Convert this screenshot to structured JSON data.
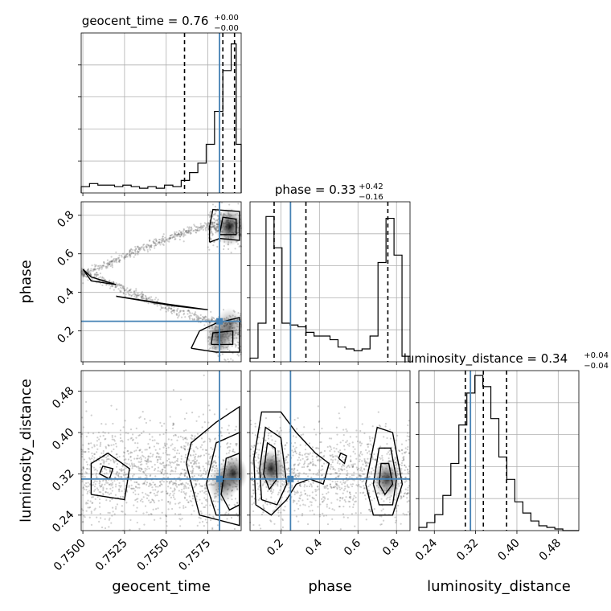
{
  "chart_data": {
    "type": "corner",
    "parameters": [
      "geocent_time",
      "phase",
      "luminosity_distance"
    ],
    "truth_color": "#4682b4",
    "truths": {
      "geocent_time": 0.7582,
      "phase": 0.25,
      "luminosity_distance": 0.31
    },
    "diagonal": [
      {
        "param": "geocent_time",
        "title_main": "geocent_time = 0.76",
        "title_sup": "+0.00",
        "title_sub": "−0.00",
        "xlim": [
          0.7499,
          0.7595
        ],
        "quantiles": [
          0.7561,
          0.7584,
          0.7591
        ],
        "bin_edges": [
          0.7499,
          0.7504,
          0.7509,
          0.7514,
          0.7519,
          0.7524,
          0.7529,
          0.7534,
          0.7539,
          0.7544,
          0.7549,
          0.7554,
          0.7559,
          0.7564,
          0.7569,
          0.7574,
          0.7579,
          0.7584,
          0.7589,
          0.7592,
          0.7595
        ],
        "counts": [
          0.04,
          0.06,
          0.05,
          0.05,
          0.04,
          0.05,
          0.04,
          0.03,
          0.04,
          0.03,
          0.05,
          0.04,
          0.08,
          0.13,
          0.19,
          0.31,
          0.52,
          0.78,
          0.95,
          0.31
        ],
        "ymax": 1.02
      },
      {
        "param": "phase",
        "title_main": "phase = 0.33",
        "title_sup": "+0.42",
        "title_sub": "−0.16",
        "xlim": [
          0.04,
          0.87
        ],
        "quantiles": [
          0.165,
          0.33,
          0.755
        ],
        "bin_edges": [
          0.04,
          0.0815,
          0.123,
          0.1645,
          0.206,
          0.2475,
          0.289,
          0.3305,
          0.372,
          0.4135,
          0.455,
          0.4965,
          0.538,
          0.5795,
          0.621,
          0.6625,
          0.704,
          0.7455,
          0.787,
          0.8285,
          0.87
        ],
        "counts": [
          0.02,
          0.21,
          0.79,
          0.62,
          0.21,
          0.2,
          0.19,
          0.16,
          0.14,
          0.14,
          0.12,
          0.08,
          0.07,
          0.06,
          0.07,
          0.14,
          0.54,
          0.78,
          0.58,
          0.03
        ],
        "ymax": 0.87
      },
      {
        "param": "luminosity_distance",
        "title_main": "luminosity_distance = 0.34",
        "title_sup": "+0.04",
        "title_sub": "−0.04",
        "xlim": [
          0.21,
          0.52
        ],
        "quantiles": [
          0.3,
          0.335,
          0.38
        ],
        "bin_edges": [
          0.21,
          0.2255,
          0.241,
          0.2565,
          0.272,
          0.2875,
          0.303,
          0.3185,
          0.334,
          0.3495,
          0.365,
          0.3805,
          0.396,
          0.4115,
          0.427,
          0.4425,
          0.458,
          0.4735,
          0.489,
          0.5045,
          0.52
        ],
        "counts": [
          0.02,
          0.05,
          0.1,
          0.22,
          0.42,
          0.66,
          0.86,
          0.97,
          0.9,
          0.7,
          0.46,
          0.32,
          0.18,
          0.11,
          0.06,
          0.03,
          0.02,
          0.01,
          0.0,
          0.0
        ],
        "ymax": 1.0
      }
    ],
    "offdiagonal": [
      {
        "x": "geocent_time",
        "y": "phase",
        "xlim": [
          0.7499,
          0.7595
        ],
        "ylim": [
          0.04,
          0.87
        ],
        "yticks": [
          "0.2",
          "0.4",
          "0.6",
          "0.8"
        ],
        "ytick_values": [
          0.2,
          0.4,
          0.6,
          0.8
        ],
        "density_blobs": [
          {
            "cx": 0.7588,
            "cy": 0.74,
            "level": 1.0
          },
          {
            "cx": 0.7582,
            "cy": 0.17,
            "level": 0.8
          },
          {
            "cx": 0.7588,
            "cy": 0.22,
            "level": 0.6
          }
        ],
        "contours": [
          [
            [
              0.7576,
              0.66
            ],
            [
              0.7582,
              0.68
            ],
            [
              0.7594,
              0.67
            ],
            [
              0.7594,
              0.82
            ],
            [
              0.7578,
              0.83
            ],
            [
              0.7576,
              0.74
            ],
            [
              0.7576,
              0.66
            ]
          ],
          [
            [
              0.7582,
              0.7
            ],
            [
              0.7592,
              0.7
            ],
            [
              0.7592,
              0.78
            ],
            [
              0.7584,
              0.79
            ],
            [
              0.7582,
              0.7
            ]
          ],
          [
            [
              0.75,
              0.52
            ],
            [
              0.7505,
              0.48
            ],
            [
              0.752,
              0.44
            ],
            [
              0.7505,
              0.46
            ],
            [
              0.75,
              0.52
            ]
          ],
          [
            [
              0.752,
              0.38
            ],
            [
              0.755,
              0.34
            ],
            [
              0.7575,
              0.31
            ],
            [
              0.7555,
              0.33
            ],
            [
              0.752,
              0.38
            ]
          ],
          [
            [
              0.7565,
              0.11
            ],
            [
              0.758,
              0.09
            ],
            [
              0.7594,
              0.09
            ],
            [
              0.7594,
              0.27
            ],
            [
              0.758,
              0.24
            ],
            [
              0.757,
              0.2
            ],
            [
              0.7565,
              0.11
            ]
          ],
          [
            [
              0.7577,
              0.13
            ],
            [
              0.759,
              0.13
            ],
            [
              0.759,
              0.2
            ],
            [
              0.7578,
              0.19
            ],
            [
              0.7577,
              0.13
            ]
          ]
        ]
      },
      {
        "x": "geocent_time",
        "y": "luminosity_distance",
        "xlim": [
          0.7499,
          0.7595
        ],
        "ylim": [
          0.21,
          0.52
        ],
        "xticks": [
          "0.7500",
          "0.7525",
          "0.7550",
          "0.7575"
        ],
        "xtick_values": [
          0.75,
          0.7525,
          0.755,
          0.7575
        ],
        "yticks": [
          "0.24",
          "0.32",
          "0.40",
          "0.48"
        ],
        "ytick_values": [
          0.24,
          0.32,
          0.4,
          0.48
        ],
        "density_blobs": [
          {
            "cx": 0.759,
            "cy": 0.32,
            "level": 1.0
          },
          {
            "cx": 0.7584,
            "cy": 0.3,
            "level": 0.7
          }
        ],
        "contours": [
          [
            [
              0.7505,
              0.28
            ],
            [
              0.7525,
              0.27
            ],
            [
              0.7528,
              0.33
            ],
            [
              0.7515,
              0.36
            ],
            [
              0.7505,
              0.34
            ],
            [
              0.7505,
              0.28
            ]
          ],
          [
            [
              0.751,
              0.32
            ],
            [
              0.7516,
              0.31
            ],
            [
              0.7518,
              0.33
            ],
            [
              0.7512,
              0.335
            ],
            [
              0.751,
              0.32
            ]
          ],
          [
            [
              0.7562,
              0.34
            ],
            [
              0.757,
              0.24
            ],
            [
              0.7594,
              0.22
            ],
            [
              0.7594,
              0.45
            ],
            [
              0.758,
              0.42
            ],
            [
              0.7565,
              0.38
            ],
            [
              0.7562,
              0.34
            ]
          ],
          [
            [
              0.7574,
              0.3
            ],
            [
              0.758,
              0.24
            ],
            [
              0.7594,
              0.24
            ],
            [
              0.7594,
              0.4
            ],
            [
              0.758,
              0.38
            ],
            [
              0.7574,
              0.3
            ]
          ],
          [
            [
              0.7583,
              0.28
            ],
            [
              0.7588,
              0.25
            ],
            [
              0.7594,
              0.26
            ],
            [
              0.7594,
              0.36
            ],
            [
              0.7586,
              0.35
            ],
            [
              0.7583,
              0.28
            ]
          ]
        ]
      },
      {
        "x": "phase",
        "y": "luminosity_distance",
        "xlim": [
          0.04,
          0.87
        ],
        "ylim": [
          0.21,
          0.52
        ],
        "xticks": [
          "0.2",
          "0.4",
          "0.6",
          "0.8"
        ],
        "xtick_values": [
          0.2,
          0.4,
          0.6,
          0.8
        ],
        "density_blobs": [
          {
            "cx": 0.15,
            "cy": 0.33,
            "level": 1.0
          },
          {
            "cx": 0.75,
            "cy": 0.31,
            "level": 0.9
          }
        ],
        "contours": [
          [
            [
              0.06,
              0.35
            ],
            [
              0.07,
              0.26
            ],
            [
              0.15,
              0.24
            ],
            [
              0.23,
              0.27
            ],
            [
              0.28,
              0.3
            ],
            [
              0.35,
              0.31
            ],
            [
              0.42,
              0.3
            ],
            [
              0.45,
              0.34
            ],
            [
              0.38,
              0.36
            ],
            [
              0.28,
              0.4
            ],
            [
              0.2,
              0.44
            ],
            [
              0.1,
              0.44
            ],
            [
              0.06,
              0.35
            ]
          ],
          [
            [
              0.09,
              0.33
            ],
            [
              0.1,
              0.27
            ],
            [
              0.18,
              0.26
            ],
            [
              0.23,
              0.3
            ],
            [
              0.2,
              0.39
            ],
            [
              0.12,
              0.41
            ],
            [
              0.09,
              0.33
            ]
          ],
          [
            [
              0.11,
              0.32
            ],
            [
              0.14,
              0.29
            ],
            [
              0.18,
              0.31
            ],
            [
              0.17,
              0.37
            ],
            [
              0.13,
              0.38
            ],
            [
              0.11,
              0.32
            ]
          ],
          [
            [
              0.64,
              0.3
            ],
            [
              0.68,
              0.24
            ],
            [
              0.78,
              0.24
            ],
            [
              0.83,
              0.3
            ],
            [
              0.78,
              0.4
            ],
            [
              0.7,
              0.41
            ],
            [
              0.64,
              0.3
            ]
          ],
          [
            [
              0.68,
              0.3
            ],
            [
              0.71,
              0.26
            ],
            [
              0.78,
              0.26
            ],
            [
              0.8,
              0.31
            ],
            [
              0.77,
              0.37
            ],
            [
              0.71,
              0.37
            ],
            [
              0.68,
              0.3
            ]
          ],
          [
            [
              0.71,
              0.3
            ],
            [
              0.74,
              0.28
            ],
            [
              0.78,
              0.3
            ],
            [
              0.76,
              0.34
            ],
            [
              0.72,
              0.34
            ],
            [
              0.71,
              0.3
            ]
          ],
          [
            [
              0.5,
              0.35
            ],
            [
              0.53,
              0.34
            ],
            [
              0.54,
              0.355
            ],
            [
              0.51,
              0.36
            ],
            [
              0.5,
              0.35
            ]
          ]
        ]
      }
    ],
    "diag_xticks": {
      "luminosity_distance": {
        "labels": [
          "0.24",
          "0.32",
          "0.40",
          "0.48"
        ],
        "values": [
          0.24,
          0.32,
          0.4,
          0.48
        ]
      }
    },
    "xlabels": [
      "geocent_time",
      "phase",
      "luminosity_distance"
    ],
    "ylabels": [
      "phase",
      "luminosity_distance"
    ]
  }
}
